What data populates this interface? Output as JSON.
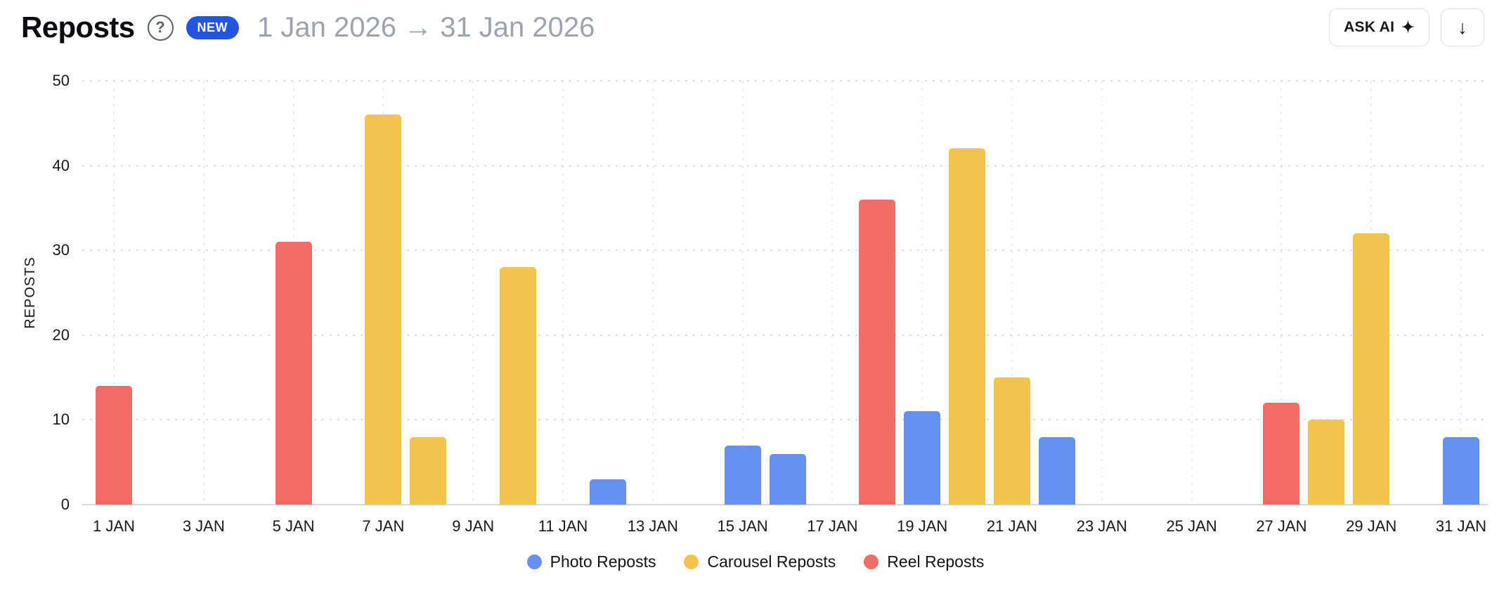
{
  "header": {
    "title": "Reposts",
    "help_icon": "?",
    "badge": "NEW",
    "date_range": "1 Jan 2026 → 31 Jan 2026",
    "ask_ai": {
      "label": "ASK AI",
      "icon": "✦"
    },
    "download_icon": "↓"
  },
  "colors": {
    "badge_bg": "#2355E4",
    "badge_text": "#FFFFFF",
    "muted_text": "#9CA3AF",
    "text": "#16181C",
    "border": "#DCE0E5",
    "grid": "#DADDE2",
    "photo": "#6691F3",
    "carousel": "#F3C44C",
    "reel": "#EF6D65"
  },
  "chart_data": {
    "type": "bar",
    "title": "Reposts",
    "xlabel": "",
    "ylabel": "REPOSTS",
    "ylim": [
      0,
      50
    ],
    "yticks": [
      0,
      10,
      20,
      30,
      40,
      50
    ],
    "days": 31,
    "x_tick_labels": [
      "1 JAN",
      "3 JAN",
      "5 JAN",
      "7 JAN",
      "9 JAN",
      "11 JAN",
      "13 JAN",
      "15 JAN",
      "17 JAN",
      "19 JAN",
      "21 JAN",
      "23 JAN",
      "25 JAN",
      "27 JAN",
      "29 JAN",
      "31 JAN"
    ],
    "grid": "dotted",
    "legend_position": "bottom",
    "series": [
      {
        "name": "Photo Reposts",
        "color": "#6691F3",
        "points": [
          {
            "day": 12,
            "value": 3
          },
          {
            "day": 15,
            "value": 7
          },
          {
            "day": 16,
            "value": 6
          },
          {
            "day": 19,
            "value": 11
          },
          {
            "day": 22,
            "value": 8
          },
          {
            "day": 31,
            "value": 8
          }
        ]
      },
      {
        "name": "Carousel Reposts",
        "color": "#F3C44C",
        "points": [
          {
            "day": 7,
            "value": 46
          },
          {
            "day": 8,
            "value": 8
          },
          {
            "day": 10,
            "value": 28
          },
          {
            "day": 20,
            "value": 42
          },
          {
            "day": 21,
            "value": 15
          },
          {
            "day": 28,
            "value": 10
          },
          {
            "day": 29,
            "value": 32
          }
        ]
      },
      {
        "name": "Reel Reposts",
        "color": "#EF6D65",
        "points": [
          {
            "day": 1,
            "value": 14
          },
          {
            "day": 5,
            "value": 31
          },
          {
            "day": 18,
            "value": 36
          },
          {
            "day": 27,
            "value": 12
          }
        ]
      }
    ]
  }
}
